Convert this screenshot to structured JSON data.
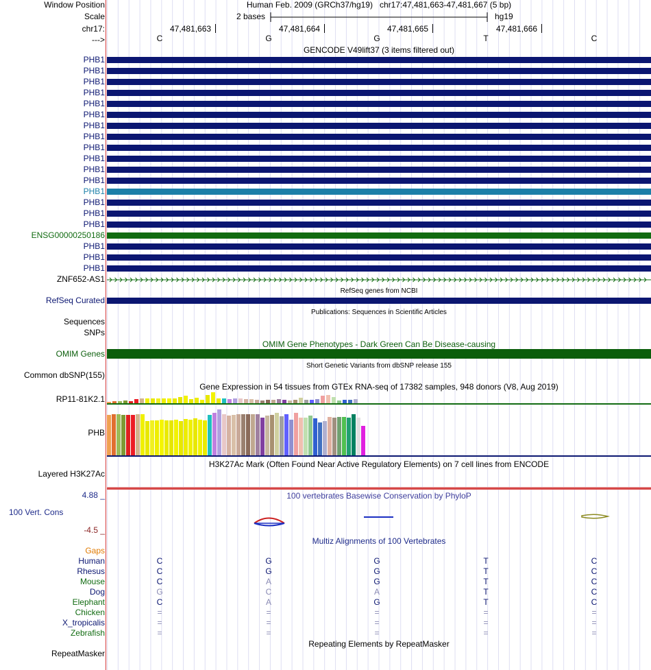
{
  "header": {
    "window_position_label": "Window Position",
    "scale_label": "Scale",
    "chrom_label": "chr17:",
    "strand_label": "--->",
    "position_title": "Human Feb. 2009 (GRCh37/hg19)   chr17:47,481,663-47,481,667 (5 bp)",
    "scale_text": "2 bases",
    "assembly": "hg19",
    "coords": [
      "47,481,663",
      "47,481,664",
      "47,481,665",
      "47,481,666"
    ],
    "bases": [
      "C",
      "G",
      "G",
      "T",
      "C"
    ]
  },
  "gencode": {
    "title": "GENCODE V49lift37 (3 items filtered out)",
    "rows": [
      {
        "name": "PHB1",
        "color": "#0b1671"
      },
      {
        "name": "PHB1",
        "color": "#0b1671"
      },
      {
        "name": "PHB1",
        "color": "#0b1671"
      },
      {
        "name": "PHB1",
        "color": "#0b1671"
      },
      {
        "name": "PHB1",
        "color": "#0b1671"
      },
      {
        "name": "PHB1",
        "color": "#0b1671"
      },
      {
        "name": "PHB1",
        "color": "#0b1671"
      },
      {
        "name": "PHB1",
        "color": "#0b1671"
      },
      {
        "name": "PHB1",
        "color": "#0b1671"
      },
      {
        "name": "PHB1",
        "color": "#0b1671"
      },
      {
        "name": "PHB1",
        "color": "#0b1671"
      },
      {
        "name": "PHB1",
        "color": "#0b1671"
      },
      {
        "name": "PHB1",
        "color": "#1b7fa8"
      },
      {
        "name": "PHB1",
        "color": "#0b1671"
      },
      {
        "name": "PHB1",
        "color": "#0b1671"
      },
      {
        "name": "PHB1",
        "color": "#0b1671"
      },
      {
        "name": "ENSG00000250186",
        "color": "#116b11"
      },
      {
        "name": "PHB1",
        "color": "#0b1671"
      },
      {
        "name": "PHB1",
        "color": "#0b1671"
      },
      {
        "name": "PHB1",
        "color": "#0b1671"
      }
    ],
    "antisense_name": "ZNF652-AS1",
    "antisense_color": "#116b11"
  },
  "refseq": {
    "title": "RefSeq genes from NCBI",
    "label": "RefSeq Curated"
  },
  "publications": {
    "title": "Publications: Sequences in Scientific Articles",
    "label": "Sequences"
  },
  "snps": {
    "label": "SNPs"
  },
  "omim": {
    "title": "OMIM Gene Phenotypes - Dark Green Can Be Disease-causing",
    "label": "OMIM Genes",
    "color": "#0b5e0b"
  },
  "dbsnp": {
    "title": "Short Genetic Variants from dbSNP release 155",
    "label": "Common dbSNP(155)"
  },
  "gtex": {
    "title": "Gene Expression in 54 tissues from GTEx RNA-seq of 17382 samples, 948 donors (V8, Aug 2019)",
    "gene1": "RP11-81K2.1",
    "gene2": "PHB"
  },
  "h3k27ac": {
    "title": "H3K27Ac Mark (Often Found Near Active Regulatory Elements) on 7 cell lines from ENCODE",
    "label": "Layered H3K27Ac"
  },
  "conservation": {
    "title": "100 vertebrates Basewise Conservation by PhyloP",
    "label": "100 Vert. Cons",
    "max": "4.88 _",
    "min": "-4.5 _"
  },
  "multiz": {
    "title": "Multiz Alignments of 100 Vertebrates",
    "gaps_label": "Gaps",
    "species": [
      {
        "name": "Human",
        "color": "#0b1671",
        "bases": [
          "C",
          "G",
          "G",
          "T",
          "C"
        ],
        "grey": [
          false,
          false,
          false,
          false,
          false
        ]
      },
      {
        "name": "Rhesus",
        "color": "#0b1671",
        "bases": [
          "C",
          "G",
          "G",
          "T",
          "C"
        ],
        "grey": [
          false,
          false,
          false,
          false,
          false
        ]
      },
      {
        "name": "Mouse",
        "color": "#116b11",
        "bases": [
          "C",
          "A",
          "G",
          "T",
          "C"
        ],
        "grey": [
          false,
          true,
          false,
          false,
          false
        ]
      },
      {
        "name": "Dog",
        "color": "#0b1671",
        "bases": [
          "G",
          "C",
          "A",
          "T",
          "C"
        ],
        "grey": [
          true,
          true,
          true,
          false,
          false
        ]
      },
      {
        "name": "Elephant",
        "color": "#116b11",
        "bases": [
          "C",
          "A",
          "G",
          "T",
          "C"
        ],
        "grey": [
          false,
          true,
          false,
          false,
          false
        ]
      },
      {
        "name": "Chicken",
        "color": "#116b11",
        "bases": [
          "=",
          "=",
          "=",
          "=",
          "="
        ],
        "grey": [
          true,
          true,
          true,
          true,
          true
        ]
      },
      {
        "name": "X_tropicalis",
        "color": "#0b1671",
        "bases": [
          "=",
          "=",
          "=",
          "=",
          "="
        ],
        "grey": [
          true,
          true,
          true,
          true,
          true
        ]
      },
      {
        "name": "Zebrafish",
        "color": "#116b11",
        "bases": [
          "=",
          "=",
          "=",
          "=",
          "="
        ],
        "grey": [
          true,
          true,
          true,
          true,
          true
        ]
      }
    ]
  },
  "repeatmasker": {
    "title": "Repeating Elements by RepeatMasker",
    "label": "RepeatMasker"
  }
}
